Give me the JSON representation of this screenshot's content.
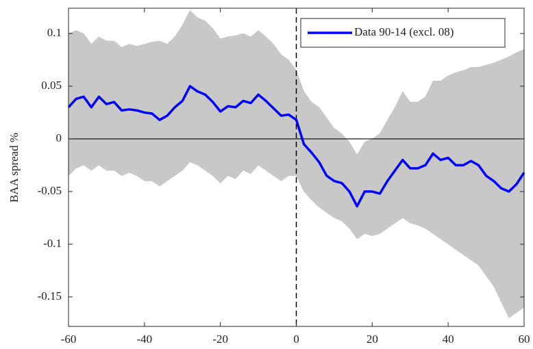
{
  "chart_data": {
    "type": "line",
    "ylabel": "BAA spread %",
    "x": [
      -60,
      -58,
      -56,
      -54,
      -52,
      -50,
      -48,
      -46,
      -44,
      -42,
      -40,
      -38,
      -36,
      -34,
      -32,
      -30,
      -28,
      -26,
      -24,
      -22,
      -20,
      -18,
      -16,
      -14,
      -12,
      -10,
      -8,
      -6,
      -4,
      -2,
      0,
      2,
      4,
      6,
      8,
      10,
      12,
      14,
      16,
      18,
      20,
      22,
      24,
      26,
      28,
      30,
      32,
      34,
      36,
      38,
      40,
      42,
      44,
      46,
      48,
      50,
      52,
      54,
      56,
      58,
      60
    ],
    "series": [
      {
        "name": "Data 90-14 (excl. 08)",
        "color": "#0000ff",
        "values": [
          0.03,
          0.038,
          0.04,
          0.03,
          0.04,
          0.033,
          0.035,
          0.027,
          0.028,
          0.027,
          0.025,
          0.024,
          0.018,
          0.022,
          0.03,
          0.036,
          0.05,
          0.045,
          0.042,
          0.035,
          0.026,
          0.031,
          0.03,
          0.036,
          0.034,
          0.042,
          0.036,
          0.029,
          0.022,
          0.023,
          0.018,
          -0.005,
          -0.013,
          -0.022,
          -0.035,
          -0.04,
          -0.042,
          -0.05,
          -0.064,
          -0.05,
          -0.05,
          -0.052,
          -0.04,
          -0.03,
          -0.02,
          -0.028,
          -0.028,
          -0.025,
          -0.014,
          -0.02,
          -0.018,
          -0.025,
          -0.025,
          -0.021,
          -0.025,
          -0.035,
          -0.04,
          -0.047,
          -0.05,
          -0.043,
          -0.032
        ]
      }
    ],
    "band": {
      "color": "#c8c8c8",
      "upper": [
        0.1,
        0.103,
        0.1,
        0.09,
        0.097,
        0.093,
        0.093,
        0.087,
        0.09,
        0.088,
        0.09,
        0.092,
        0.093,
        0.09,
        0.097,
        0.108,
        0.122,
        0.115,
        0.112,
        0.105,
        0.095,
        0.097,
        0.098,
        0.1,
        0.097,
        0.103,
        0.097,
        0.09,
        0.08,
        0.075,
        0.065,
        0.045,
        0.035,
        0.03,
        0.02,
        0.01,
        0.005,
        -0.003,
        -0.015,
        -0.003,
        0.0,
        0.005,
        0.018,
        0.03,
        0.045,
        0.035,
        0.035,
        0.04,
        0.055,
        0.055,
        0.06,
        0.063,
        0.065,
        0.068,
        0.068,
        0.07,
        0.072,
        0.075,
        0.078,
        0.082,
        0.085
      ],
      "lower": [
        -0.035,
        -0.028,
        -0.025,
        -0.03,
        -0.025,
        -0.03,
        -0.03,
        -0.035,
        -0.032,
        -0.035,
        -0.04,
        -0.04,
        -0.045,
        -0.04,
        -0.035,
        -0.03,
        -0.022,
        -0.025,
        -0.03,
        -0.035,
        -0.042,
        -0.035,
        -0.038,
        -0.03,
        -0.033,
        -0.025,
        -0.03,
        -0.035,
        -0.04,
        -0.035,
        -0.035,
        -0.05,
        -0.058,
        -0.065,
        -0.07,
        -0.075,
        -0.078,
        -0.085,
        -0.095,
        -0.09,
        -0.092,
        -0.09,
        -0.085,
        -0.08,
        -0.075,
        -0.08,
        -0.082,
        -0.085,
        -0.09,
        -0.095,
        -0.1,
        -0.105,
        -0.11,
        -0.115,
        -0.12,
        -0.13,
        -0.14,
        -0.155,
        -0.17,
        -0.165,
        -0.16
      ]
    },
    "hline": 0,
    "vline": 0,
    "xlim": [
      -60,
      60
    ],
    "xticks": [
      -60,
      -40,
      -20,
      0,
      20,
      40,
      60
    ],
    "ylim": [
      -0.178,
      0.124
    ],
    "yticks": [
      -0.15,
      -0.1,
      -0.05,
      0,
      0.05,
      0.1
    ],
    "legend": "top-right"
  }
}
